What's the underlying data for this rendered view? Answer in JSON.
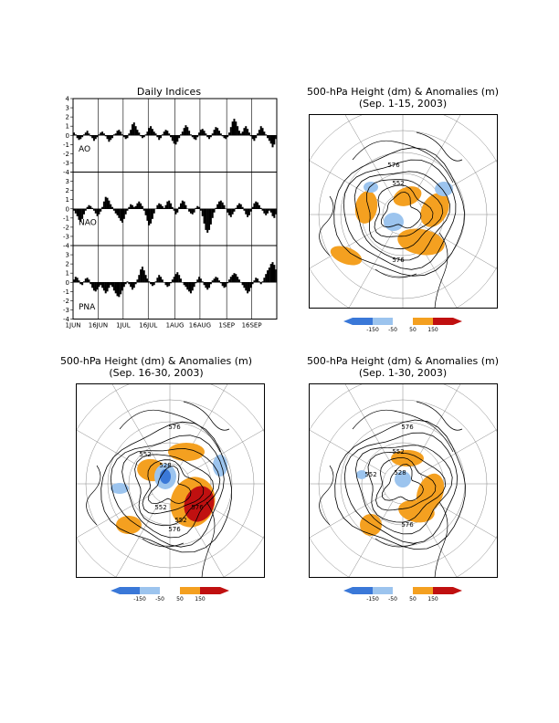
{
  "titles": {
    "indices": "Daily Indices",
    "map1_line1": "500-hPa Height (dm) & Anomalies (m)",
    "map1_line2": "(Sep. 1-15, 2003)",
    "map2_line1": "500-hPa Height (dm) & Anomalies (m)",
    "map2_line2": "(Sep. 16-30, 2003)",
    "map3_line1": "500-hPa Height (dm) & Anomalies (m)",
    "map3_line2": "(Sep. 1-30, 2003)"
  },
  "colors": {
    "negative_strong": "#3a78d8",
    "negative_weak": "#9cc4ee",
    "positive_weak": "#f4a020",
    "positive_strong": "#c01010",
    "bars": "#000000"
  },
  "legend": {
    "labels": [
      "-150",
      "-50",
      "50",
      "150"
    ]
  },
  "map_labels": {
    "map1": [
      "576",
      "552",
      "576"
    ],
    "map2": [
      "576",
      "552",
      "528",
      "552",
      "576",
      "552",
      "576"
    ],
    "map3": [
      "576",
      "552",
      "528",
      "552",
      "576"
    ]
  },
  "chart_data": [
    {
      "type": "bar",
      "title": "Daily Indices",
      "x_tick_labels": [
        "1JUN",
        "16JUN",
        "1JUL",
        "16JUL",
        "1AUG",
        "16AUG",
        "1SEP",
        "16SEP"
      ],
      "x_start": "2003-06-01",
      "x_end": "2003-09-30",
      "grid": true,
      "series": [
        {
          "name": "AO",
          "ylim": [
            -4,
            4
          ],
          "y_ticks": [
            "4",
            "3",
            "2",
            "1",
            "0",
            "-1",
            "-2",
            "-3",
            "-4"
          ],
          "values": [
            0.3,
            0.1,
            -0.3,
            -0.5,
            -0.4,
            -0.2,
            0.1,
            0.3,
            0.5,
            0.2,
            -0.1,
            -0.3,
            -0.6,
            -0.4,
            -0.2,
            0.1,
            0.3,
            0.4,
            0.2,
            -0.1,
            -0.4,
            -0.7,
            -0.5,
            -0.3,
            0.1,
            0.2,
            0.5,
            0.6,
            0.4,
            0.1,
            -0.2,
            -0.4,
            -0.3,
            0.2,
            0.6,
            1.2,
            1.4,
            1.0,
            0.6,
            0.3,
            -0.1,
            -0.3,
            -0.2,
            0.1,
            0.4,
            0.8,
            1.0,
            0.7,
            0.4,
            0.2,
            -0.2,
            -0.5,
            -0.3,
            0.1,
            0.4,
            0.6,
            0.5,
            0.2,
            -0.2,
            -0.6,
            -0.9,
            -1.0,
            -0.7,
            -0.3,
            0.1,
            0.4,
            0.8,
            1.1,
            0.9,
            0.5,
            0.1,
            -0.2,
            -0.4,
            -0.5,
            -0.2,
            0.3,
            0.6,
            0.7,
            0.5,
            0.2,
            -0.2,
            -0.4,
            -0.2,
            0.2,
            0.6,
            0.9,
            0.8,
            0.5,
            0.2,
            -0.1,
            -0.3,
            -0.4,
            -0.2,
            0.3,
            0.9,
            1.5,
            1.8,
            1.5,
            1.0,
            0.5,
            0.2,
            0.4,
            0.8,
            1.0,
            0.7,
            0.3,
            -0.1,
            -0.4,
            -0.6,
            -0.3,
            0.2,
            0.6,
            1.0,
            0.8,
            0.4,
            0.1,
            -0.3,
            -0.6,
            -0.9,
            -1.3,
            -1.0,
            -0.4
          ]
        },
        {
          "name": "NAO",
          "ylim": [
            -4,
            4
          ],
          "y_ticks": [
            "4",
            "3",
            "2",
            "1",
            "0",
            "-1",
            "-2",
            "-3",
            "-4"
          ],
          "values": [
            -0.2,
            -0.5,
            -0.8,
            -1.2,
            -1.4,
            -1.1,
            -0.6,
            -0.2,
            0.2,
            0.4,
            0.3,
            0.1,
            -0.2,
            -0.5,
            -0.8,
            -0.6,
            -0.3,
            0.2,
            0.8,
            1.3,
            1.2,
            0.9,
            0.5,
            0.2,
            -0.2,
            -0.5,
            -0.7,
            -1.0,
            -1.3,
            -1.5,
            -1.1,
            -0.6,
            -0.2,
            0.2,
            0.5,
            0.4,
            0.2,
            0.3,
            0.6,
            0.8,
            0.6,
            0.3,
            -0.2,
            -0.7,
            -1.3,
            -1.8,
            -1.6,
            -1.1,
            -0.5,
            0.0,
            0.4,
            0.6,
            0.5,
            0.3,
            0.1,
            0.4,
            0.8,
            0.9,
            0.6,
            0.2,
            -0.2,
            -0.6,
            -0.4,
            0.2,
            0.6,
            0.9,
            0.8,
            0.4,
            0.0,
            -0.3,
            -0.5,
            -0.6,
            -0.4,
            0.1,
            0.3,
            0.2,
            -0.2,
            -0.8,
            -1.6,
            -2.3,
            -2.6,
            -2.3,
            -1.7,
            -1.0,
            -0.4,
            0.1,
            0.5,
            0.8,
            0.9,
            0.7,
            0.4,
            0.0,
            -0.4,
            -0.7,
            -0.9,
            -0.6,
            -0.3,
            0.1,
            0.4,
            0.6,
            0.5,
            0.2,
            -0.2,
            -0.6,
            -0.9,
            -0.7,
            -0.3,
            0.2,
            0.6,
            0.8,
            0.7,
            0.4,
            0.1,
            -0.2,
            -0.5,
            -0.7,
            -0.5,
            -0.2,
            -0.4,
            -0.8,
            -1.0,
            -0.6
          ]
        },
        {
          "name": "PNA",
          "ylim": [
            -4,
            4
          ],
          "y_ticks": [
            "4",
            "3",
            "2",
            "1",
            "0",
            "-1",
            "-2",
            "-3",
            "-4"
          ],
          "values": [
            0.3,
            0.6,
            0.5,
            0.2,
            -0.2,
            -0.3,
            0.1,
            0.4,
            0.5,
            0.3,
            -0.2,
            -0.6,
            -0.9,
            -1.0,
            -0.8,
            -0.5,
            -0.3,
            -0.6,
            -0.9,
            -1.2,
            -1.0,
            -0.6,
            -0.3,
            -0.5,
            -0.9,
            -1.2,
            -1.5,
            -1.6,
            -1.3,
            -0.9,
            -0.5,
            -0.2,
            0.1,
            -0.2,
            -0.5,
            -0.8,
            -0.6,
            -0.2,
            0.3,
            0.8,
            1.4,
            1.7,
            1.3,
            0.8,
            0.4,
            0.1,
            -0.2,
            -0.4,
            -0.3,
            0.1,
            0.5,
            0.8,
            0.6,
            0.3,
            0.0,
            -0.3,
            -0.5,
            -0.4,
            -0.1,
            0.3,
            0.6,
            0.9,
            1.1,
            0.8,
            0.4,
            0.0,
            -0.3,
            -0.5,
            -0.8,
            -1.0,
            -1.2,
            -0.9,
            -0.5,
            -0.1,
            0.3,
            0.6,
            0.4,
            0.1,
            -0.3,
            -0.6,
            -0.8,
            -0.6,
            -0.2,
            0.2,
            0.4,
            0.6,
            0.5,
            0.2,
            -0.1,
            -0.4,
            -0.6,
            -0.5,
            -0.1,
            0.3,
            0.6,
            0.8,
            1.0,
            0.9,
            0.6,
            0.3,
            0.0,
            -0.3,
            -0.6,
            -0.9,
            -1.2,
            -1.0,
            -0.6,
            -0.2,
            0.2,
            0.5,
            0.4,
            0.1,
            -0.2,
            0.1,
            0.5,
            0.9,
            1.3,
            1.6,
            2.0,
            2.2,
            1.9,
            1.4
          ]
        }
      ]
    }
  ]
}
